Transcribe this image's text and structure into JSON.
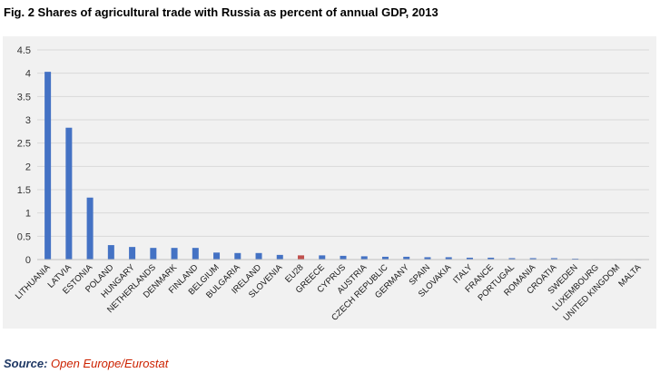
{
  "figure": {
    "title": "Fig. 2 Shares of agricultural trade with Russia as percent of annual GDP, 2013",
    "source_label": "Source:",
    "source_text": "Open Europe/Eurostat"
  },
  "colors": {
    "bar": "#4472c4",
    "highlight_bar": "#c0504d",
    "panel_background": "#f1f1f1",
    "gridline": "#d9d9d9",
    "source_text": "#cc2200"
  },
  "chart_data": {
    "type": "bar",
    "title": "Fig. 2 Shares of agricultural trade with Russia as percent of annual GDP, 2013",
    "xlabel": "",
    "ylabel": "",
    "ylim": [
      0,
      4.5
    ],
    "yticks": [
      "0",
      "0.5",
      "1",
      "1.5",
      "2",
      "2.5",
      "3",
      "3.5",
      "4",
      "4.5"
    ],
    "grid": true,
    "legend": "none",
    "highlight_category": "EU28",
    "categories": [
      "LITHUANIA",
      "LATVIA",
      "ESTONIA",
      "POLAND",
      "HUNGARY",
      "NETHERLANDS",
      "DENMARK",
      "FINLAND",
      "BELGIUM",
      "BULGARIA",
      "IRELAND",
      "SLOVENIA",
      "EU28",
      "GREECE",
      "CYPRUS",
      "AUSTRIA",
      "CZECH REPUBLIC",
      "GERMANY",
      "SPAIN",
      "SLOVAKIA",
      "ITALY",
      "FRANCE",
      "PORTUGAL",
      "ROMANIA",
      "CROATIA",
      "SWEDEN",
      "LUXEMBOURG",
      "UNITED KINGDOM",
      "MALTA"
    ],
    "values": [
      4.03,
      2.83,
      1.33,
      0.31,
      0.27,
      0.25,
      0.25,
      0.25,
      0.15,
      0.14,
      0.14,
      0.1,
      0.09,
      0.09,
      0.08,
      0.07,
      0.06,
      0.06,
      0.05,
      0.05,
      0.04,
      0.04,
      0.03,
      0.03,
      0.03,
      0.02,
      0.01,
      0.01,
      0.005
    ]
  }
}
